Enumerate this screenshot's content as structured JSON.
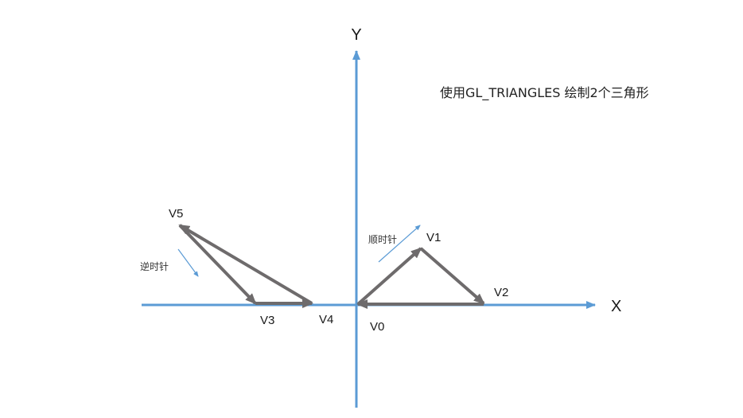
{
  "title": "使用GL_TRIANGLES 绘制2个三角形",
  "axes": {
    "x_label": "X",
    "y_label": "Y"
  },
  "vertices": {
    "v0": "V0",
    "v1": "V1",
    "v2": "V2",
    "v3": "V3",
    "v4": "V4",
    "v5": "V5"
  },
  "notes": {
    "clockwise": "顺时针",
    "counterclockwise": "逆时针"
  },
  "colors": {
    "axis": "#5b9bd5",
    "edge": "#6e6b6c",
    "note_arrow": "#5b9bd5"
  }
}
